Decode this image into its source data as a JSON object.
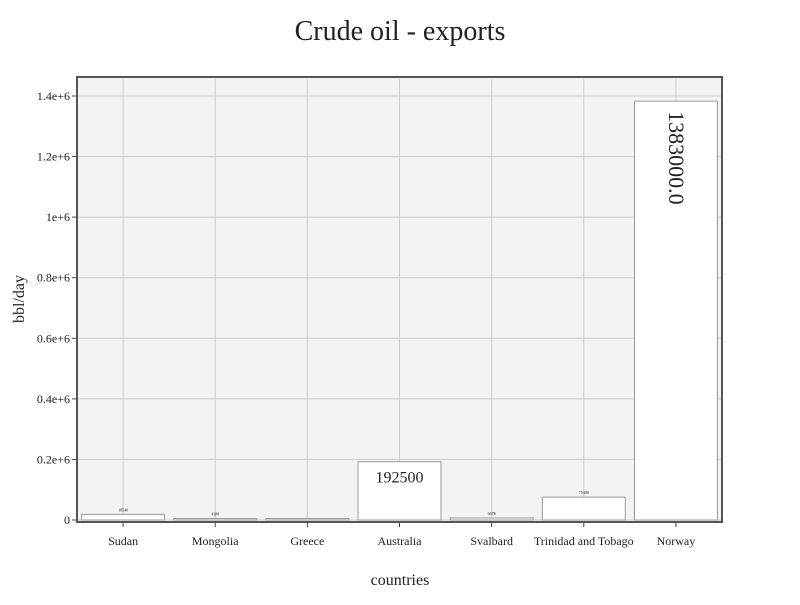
{
  "chart_data": {
    "type": "bar",
    "title": "Crude oil - exports",
    "xlabel": "countries",
    "ylabel": "bbl/day",
    "categories": [
      "Sudan",
      "Mongolia",
      "Greece",
      "Australia",
      "Svalbard",
      "Trinidad and Tobago",
      "Norway"
    ],
    "values": [
      18540,
      4180,
      0,
      192500,
      6678,
      75400,
      1383000
    ],
    "data_labels": [
      "18540",
      "4180",
      "",
      "192500",
      "6678",
      "75400",
      "1383000.0"
    ],
    "ylim": [
      0,
      1460000
    ],
    "yticks": [
      0,
      200000,
      400000,
      600000,
      800000,
      1000000,
      1200000,
      1400000
    ],
    "ytick_labels": [
      "0",
      "0.2e+6",
      "0.4e+6",
      "0.6e+6",
      "0.8e+6",
      "1e+6",
      "1.2e+6",
      "1.4e+6"
    ],
    "grid": true,
    "colors": {
      "plot_bg": "#f3f3f3",
      "grid": "#cccccc",
      "bar_fill": "#ffffff",
      "bar_stroke": "#999999",
      "frame": "#555555"
    }
  }
}
